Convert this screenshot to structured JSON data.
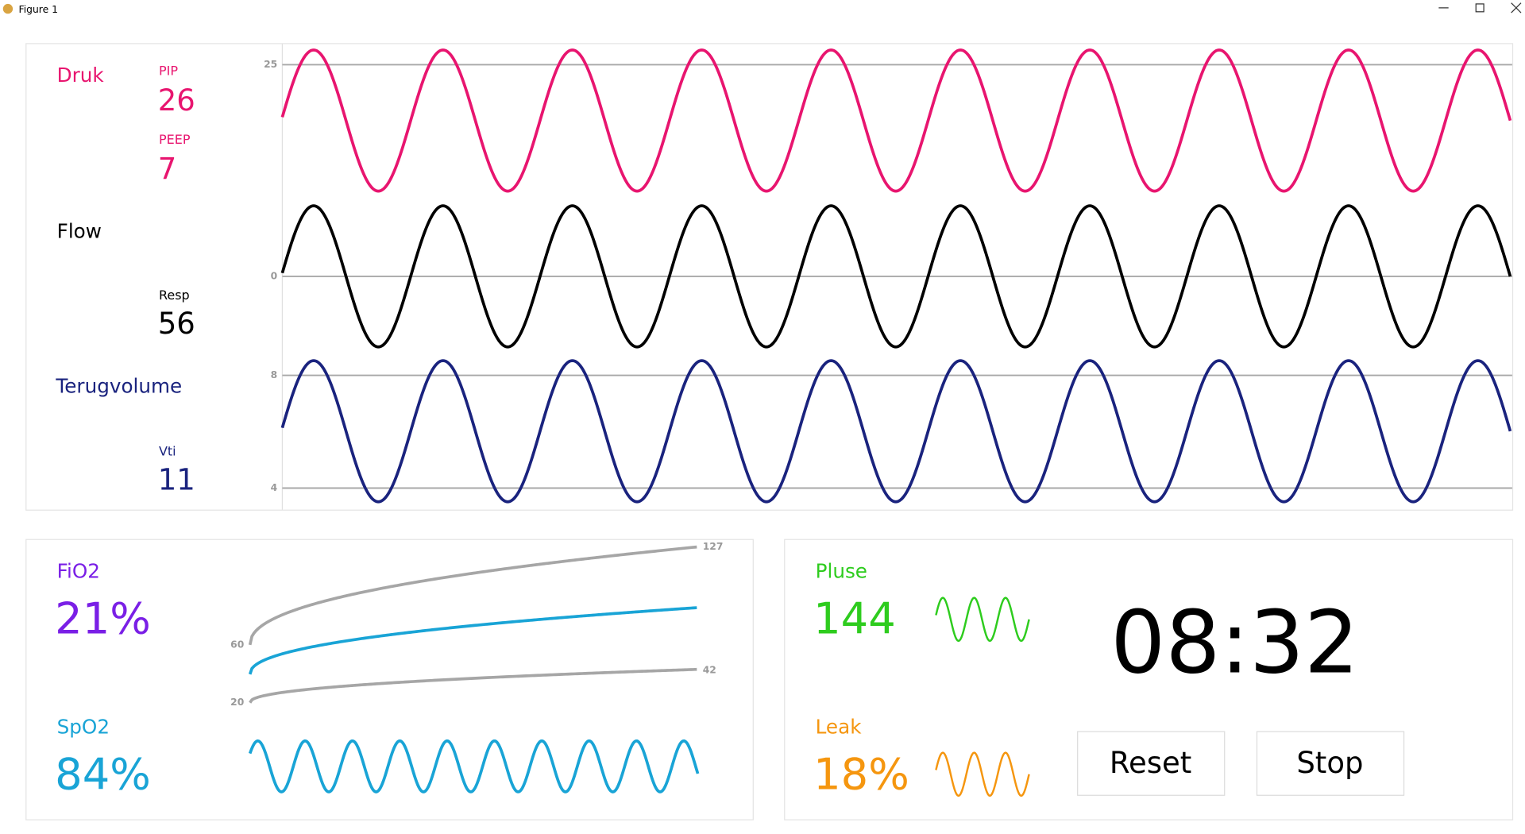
{
  "window": {
    "title": "Figure 1"
  },
  "pressure": {
    "label": "Druk",
    "pip_label": "PIP",
    "pip_value": 26,
    "peep_label": "PEEP",
    "peep_value": 7
  },
  "flow": {
    "label": "Flow",
    "resp_label": "Resp",
    "resp_value": 56
  },
  "volume": {
    "label": "Terugvolume",
    "vti_label": "Vti",
    "vti_value": 11
  },
  "waveform_ticks": {
    "pressure": 25,
    "flow": 0,
    "volume_high": 8,
    "volume_low": 4
  },
  "oxygen": {
    "fio2_label": "FiO2",
    "fio2_value": "21%",
    "spo2_label": "SpO2",
    "spo2_value": "84%",
    "ticks": {
      "upper_start": 60,
      "lower_start": 20,
      "upper_end": 127,
      "lower_end": 42
    }
  },
  "pulse": {
    "label": "Pluse",
    "value": 144
  },
  "leak": {
    "label": "Leak",
    "value": "18%"
  },
  "timer": "08:32",
  "buttons": {
    "reset": "Reset",
    "stop": "Stop"
  }
}
